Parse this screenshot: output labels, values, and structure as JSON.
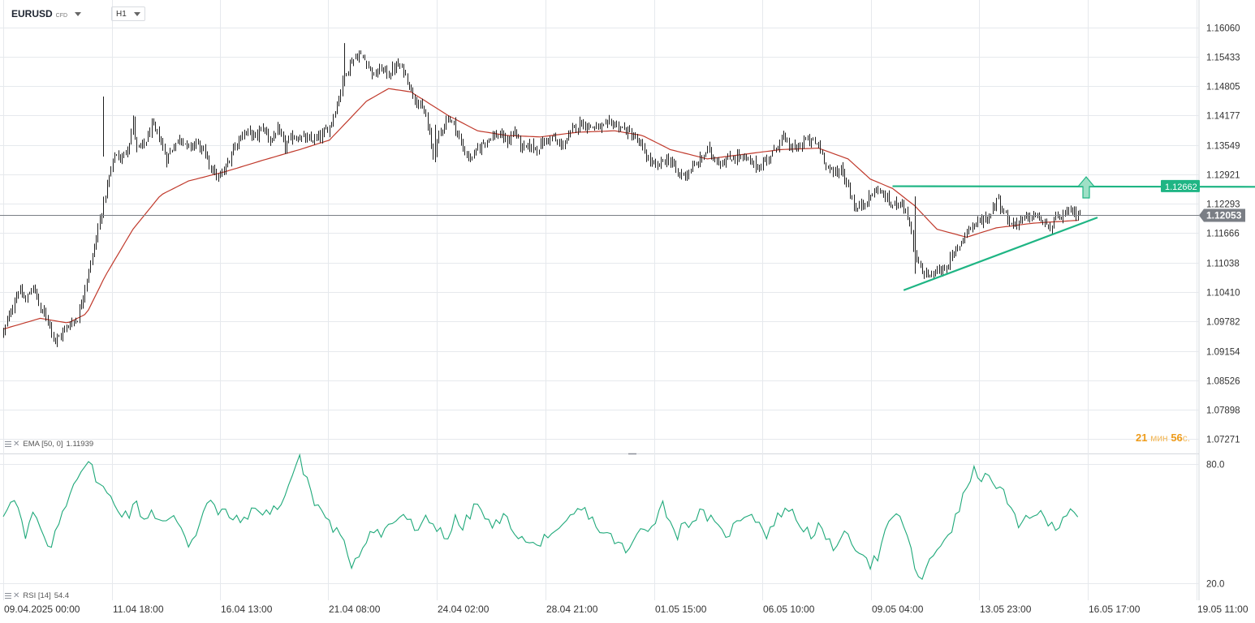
{
  "toolbar": {
    "symbol": "EURUSD",
    "symbol_type": "CFD",
    "timeframe": "H1"
  },
  "indicators": {
    "ema": {
      "label": "EMA [50, 0]",
      "value": "1.11939"
    },
    "rsi": {
      "label": "RSI [14]",
      "value": "54.4"
    }
  },
  "countdown": {
    "minutes": "21",
    "minutes_unit": "мин",
    "seconds": "56",
    "seconds_unit": "с."
  },
  "colors": {
    "candle": "#1f1f1f",
    "ema": "#c0392b",
    "rsi": "#1fa97a",
    "drawing": "#1fb584",
    "grid": "#e6e9ed",
    "current_price_line": "#7a7e85",
    "current_price_label": "#7a7e85"
  },
  "chart_data": {
    "type": "candlestick",
    "timeframe": "H1",
    "price_axis_ticks": [
      "1.16060",
      "1.15433",
      "1.14805",
      "1.14177",
      "1.13549",
      "1.12921",
      "1.12293",
      "1.11666",
      "1.11038",
      "1.10410",
      "1.09782",
      "1.09154",
      "1.08526",
      "1.07898",
      "1.07271"
    ],
    "price_range": [
      1.0695,
      1.1664
    ],
    "time_axis_labels": [
      "09.04.2025  00:00",
      "11.04  18:00",
      "16.04  13:00",
      "21.04  08:00",
      "24.04  02:00",
      "28.04  21:00",
      "01.05  15:00",
      "06.05  10:00",
      "09.05  04:00",
      "13.05  23:00",
      "16.05  17:00",
      "19.05  11:00"
    ],
    "current_price": "1.12053",
    "resistance_price": "1.12662",
    "close_path": [
      [
        0,
        1.0955
      ],
      [
        4,
        1.1002
      ],
      [
        8,
        1.1045
      ],
      [
        12,
        1.1022
      ],
      [
        16,
        1.1055
      ],
      [
        20,
        1.1002
      ],
      [
        24,
        1.0984
      ],
      [
        28,
        1.0935
      ],
      [
        32,
        1.0955
      ],
      [
        36,
        1.0975
      ],
      [
        40,
        1.0985
      ],
      [
        44,
        1.1055
      ],
      [
        48,
        1.1118
      ],
      [
        52,
        1.1195
      ],
      [
        56,
        1.1268
      ],
      [
        60,
        1.1335
      ],
      [
        64,
        1.1325
      ],
      [
        68,
        1.1362
      ],
      [
        70,
        1.1405
      ],
      [
        72,
        1.1345
      ],
      [
        76,
        1.1355
      ],
      [
        80,
        1.1395
      ],
      [
        84,
        1.1372
      ],
      [
        88,
        1.1325
      ],
      [
        92,
        1.1355
      ],
      [
        96,
        1.1372
      ],
      [
        100,
        1.1345
      ],
      [
        104,
        1.1362
      ],
      [
        108,
        1.1338
      ],
      [
        112,
        1.1308
      ],
      [
        116,
        1.1282
      ],
      [
        120,
        1.1305
      ],
      [
        124,
        1.1348
      ],
      [
        128,
        1.1375
      ],
      [
        132,
        1.1382
      ],
      [
        136,
        1.1372
      ],
      [
        140,
        1.1392
      ],
      [
        144,
        1.1365
      ],
      [
        148,
        1.1385
      ],
      [
        152,
        1.1352
      ],
      [
        156,
        1.1372
      ],
      [
        160,
        1.1372
      ],
      [
        164,
        1.1365
      ],
      [
        168,
        1.1365
      ],
      [
        172,
        1.1375
      ],
      [
        176,
        1.1395
      ],
      [
        180,
        1.1442
      ],
      [
        184,
        1.1505
      ],
      [
        188,
        1.1535
      ],
      [
        192,
        1.1548
      ],
      [
        196,
        1.1532
      ],
      [
        200,
        1.1502
      ],
      [
        204,
        1.1518
      ],
      [
        208,
        1.1505
      ],
      [
        212,
        1.1525
      ],
      [
        216,
        1.1515
      ],
      [
        220,
        1.1472
      ],
      [
        224,
        1.1442
      ],
      [
        228,
        1.1415
      ],
      [
        232,
        1.1332
      ],
      [
        236,
        1.1385
      ],
      [
        240,
        1.1415
      ],
      [
        244,
        1.1392
      ],
      [
        248,
        1.1345
      ],
      [
        252,
        1.1325
      ],
      [
        256,
        1.1345
      ],
      [
        260,
        1.1365
      ],
      [
        264,
        1.1375
      ],
      [
        268,
        1.1375
      ],
      [
        272,
        1.1362
      ],
      [
        276,
        1.1385
      ],
      [
        280,
        1.1345
      ],
      [
        284,
        1.1352
      ],
      [
        288,
        1.1348
      ],
      [
        292,
        1.1362
      ],
      [
        296,
        1.1372
      ],
      [
        300,
        1.1352
      ],
      [
        304,
        1.1365
      ],
      [
        308,
        1.1392
      ],
      [
        312,
        1.1402
      ],
      [
        316,
        1.1395
      ],
      [
        320,
        1.1392
      ],
      [
        324,
        1.1392
      ],
      [
        328,
        1.1402
      ],
      [
        332,
        1.1395
      ],
      [
        336,
        1.1385
      ],
      [
        340,
        1.1372
      ],
      [
        344,
        1.1352
      ],
      [
        348,
        1.1325
      ],
      [
        352,
        1.1305
      ],
      [
        356,
        1.1322
      ],
      [
        360,
        1.1322
      ],
      [
        364,
        1.1292
      ],
      [
        368,
        1.1292
      ],
      [
        372,
        1.1305
      ],
      [
        376,
        1.1322
      ],
      [
        380,
        1.1345
      ],
      [
        384,
        1.1325
      ],
      [
        388,
        1.1318
      ],
      [
        392,
        1.1325
      ],
      [
        396,
        1.1332
      ],
      [
        400,
        1.1325
      ],
      [
        404,
        1.1315
      ],
      [
        408,
        1.1308
      ],
      [
        412,
        1.1325
      ],
      [
        416,
        1.1342
      ],
      [
        420,
        1.1372
      ],
      [
        424,
        1.1352
      ],
      [
        428,
        1.1345
      ],
      [
        432,
        1.1365
      ],
      [
        436,
        1.1362
      ],
      [
        440,
        1.1355
      ],
      [
        444,
        1.1315
      ],
      [
        448,
        1.1292
      ],
      [
        452,
        1.1305
      ],
      [
        456,
        1.1265
      ],
      [
        460,
        1.1215
      ],
      [
        464,
        1.1232
      ],
      [
        468,
        1.1245
      ],
      [
        472,
        1.1262
      ],
      [
        476,
        1.1242
      ],
      [
        480,
        1.1225
      ],
      [
        484,
        1.1238
      ],
      [
        488,
        1.1205
      ],
      [
        492,
        1.1115
      ],
      [
        496,
        1.1085
      ],
      [
        500,
        1.1075
      ],
      [
        504,
        1.1085
      ],
      [
        508,
        1.1092
      ],
      [
        512,
        1.1115
      ],
      [
        516,
        1.1142
      ],
      [
        520,
        1.1175
      ],
      [
        524,
        1.1185
      ],
      [
        528,
        1.1195
      ],
      [
        532,
        1.1202
      ],
      [
        536,
        1.1242
      ],
      [
        540,
        1.1212
      ],
      [
        544,
        1.1185
      ],
      [
        548,
        1.1192
      ],
      [
        552,
        1.1198
      ],
      [
        556,
        1.1205
      ],
      [
        560,
        1.1195
      ],
      [
        564,
        1.1175
      ],
      [
        568,
        1.1195
      ],
      [
        572,
        1.1205
      ],
      [
        576,
        1.1212
      ],
      [
        580,
        1.1208
      ]
    ],
    "ema_path": [
      [
        0,
        1.0962
      ],
      [
        20,
        1.0985
      ],
      [
        35,
        1.0975
      ],
      [
        45,
        1.0995
      ],
      [
        55,
        1.1075
      ],
      [
        70,
        1.1175
      ],
      [
        85,
        1.1248
      ],
      [
        100,
        1.1278
      ],
      [
        120,
        1.1298
      ],
      [
        140,
        1.1322
      ],
      [
        160,
        1.1345
      ],
      [
        176,
        1.1365
      ],
      [
        184,
        1.1398
      ],
      [
        196,
        1.1448
      ],
      [
        208,
        1.1475
      ],
      [
        220,
        1.1468
      ],
      [
        240,
        1.1418
      ],
      [
        256,
        1.1385
      ],
      [
        272,
        1.1375
      ],
      [
        290,
        1.1372
      ],
      [
        310,
        1.1382
      ],
      [
        330,
        1.1385
      ],
      [
        345,
        1.1375
      ],
      [
        360,
        1.1345
      ],
      [
        380,
        1.1325
      ],
      [
        400,
        1.1335
      ],
      [
        420,
        1.1345
      ],
      [
        440,
        1.1348
      ],
      [
        456,
        1.1325
      ],
      [
        468,
        1.1282
      ],
      [
        480,
        1.1262
      ],
      [
        492,
        1.1225
      ],
      [
        504,
        1.1175
      ],
      [
        520,
        1.1158
      ],
      [
        536,
        1.1178
      ],
      [
        556,
        1.1188
      ],
      [
        580,
        1.1194
      ]
    ],
    "rsi": {
      "axis_ticks": [
        "80.0",
        "20.0"
      ],
      "range": [
        13.5,
        85
      ],
      "path": [
        [
          0,
          55
        ],
        [
          4,
          63
        ],
        [
          8,
          58
        ],
        [
          12,
          42
        ],
        [
          16,
          55
        ],
        [
          20,
          48
        ],
        [
          24,
          36
        ],
        [
          28,
          44
        ],
        [
          32,
          56
        ],
        [
          36,
          66
        ],
        [
          40,
          75
        ],
        [
          44,
          80
        ],
        [
          48,
          78
        ],
        [
          52,
          70
        ],
        [
          56,
          65
        ],
        [
          60,
          60
        ],
        [
          64,
          56
        ],
        [
          68,
          55
        ],
        [
          72,
          60
        ],
        [
          76,
          52
        ],
        [
          80,
          57
        ],
        [
          84,
          52
        ],
        [
          88,
          50
        ],
        [
          92,
          53
        ],
        [
          96,
          49
        ],
        [
          100,
          40
        ],
        [
          104,
          45
        ],
        [
          108,
          58
        ],
        [
          112,
          62
        ],
        [
          116,
          54
        ],
        [
          120,
          57
        ],
        [
          124,
          52
        ],
        [
          128,
          51
        ],
        [
          132,
          55
        ],
        [
          136,
          56
        ],
        [
          140,
          57
        ],
        [
          144,
          55
        ],
        [
          148,
          59
        ],
        [
          152,
          64
        ],
        [
          156,
          75
        ],
        [
          160,
          82
        ],
        [
          164,
          73
        ],
        [
          168,
          60
        ],
        [
          172,
          57
        ],
        [
          176,
          50
        ],
        [
          180,
          46
        ],
        [
          184,
          39
        ],
        [
          188,
          30
        ],
        [
          192,
          35
        ],
        [
          196,
          43
        ],
        [
          200,
          48
        ],
        [
          204,
          44
        ],
        [
          208,
          49
        ],
        [
          212,
          52
        ],
        [
          216,
          55
        ],
        [
          220,
          50
        ],
        [
          224,
          45
        ],
        [
          228,
          52
        ],
        [
          232,
          50
        ],
        [
          236,
          47
        ],
        [
          240,
          43
        ],
        [
          244,
          52
        ],
        [
          248,
          48
        ],
        [
          252,
          55
        ],
        [
          256,
          60
        ],
        [
          260,
          53
        ],
        [
          264,
          47
        ],
        [
          268,
          53
        ],
        [
          272,
          52
        ],
        [
          276,
          47
        ],
        [
          280,
          42
        ],
        [
          284,
          40
        ],
        [
          288,
          38
        ],
        [
          292,
          45
        ],
        [
          296,
          42
        ],
        [
          300,
          45
        ],
        [
          304,
          50
        ],
        [
          308,
          55
        ],
        [
          312,
          57
        ],
        [
          316,
          55
        ],
        [
          320,
          49
        ],
        [
          324,
          45
        ],
        [
          328,
          43
        ],
        [
          332,
          41
        ],
        [
          336,
          35
        ],
        [
          340,
          40
        ],
        [
          344,
          47
        ],
        [
          348,
          48
        ],
        [
          352,
          53
        ],
        [
          356,
          60
        ],
        [
          360,
          51
        ],
        [
          364,
          45
        ],
        [
          368,
          50
        ],
        [
          372,
          52
        ],
        [
          376,
          55
        ],
        [
          380,
          54
        ],
        [
          384,
          49
        ],
        [
          388,
          45
        ],
        [
          392,
          46
        ],
        [
          396,
          50
        ],
        [
          400,
          55
        ],
        [
          404,
          56
        ],
        [
          408,
          50
        ],
        [
          412,
          45
        ],
        [
          416,
          50
        ],
        [
          420,
          56
        ],
        [
          424,
          58
        ],
        [
          428,
          52
        ],
        [
          432,
          48
        ],
        [
          436,
          45
        ],
        [
          440,
          48
        ],
        [
          444,
          42
        ],
        [
          448,
          37
        ],
        [
          452,
          45
        ],
        [
          456,
          42
        ],
        [
          460,
          39
        ],
        [
          464,
          36
        ],
        [
          468,
          30
        ],
        [
          472,
          33
        ],
        [
          476,
          45
        ],
        [
          480,
          52
        ],
        [
          484,
          55
        ],
        [
          488,
          43
        ],
        [
          492,
          28
        ],
        [
          496,
          22
        ],
        [
          500,
          30
        ],
        [
          504,
          37
        ],
        [
          508,
          43
        ],
        [
          512,
          48
        ],
        [
          516,
          57
        ],
        [
          520,
          69
        ],
        [
          524,
          76
        ],
        [
          528,
          74
        ],
        [
          532,
          72
        ],
        [
          536,
          70
        ],
        [
          540,
          65
        ],
        [
          544,
          56
        ],
        [
          548,
          48
        ],
        [
          552,
          53
        ],
        [
          556,
          56
        ],
        [
          560,
          54
        ],
        [
          564,
          50
        ],
        [
          568,
          48
        ],
        [
          572,
          54
        ],
        [
          576,
          58
        ],
        [
          580,
          55
        ]
      ]
    },
    "candle_params": {
      "count": 582,
      "min_index": 0,
      "max_index": 581
    },
    "drawings": {
      "resistance_line": {
        "from": [
          480,
          1.12668
        ],
        "to": [
          751,
          1.1265
        ]
      },
      "support_line": {
        "from": [
          486,
          1.1045
        ],
        "to": [
          580,
          1.12
        ]
      }
    }
  }
}
